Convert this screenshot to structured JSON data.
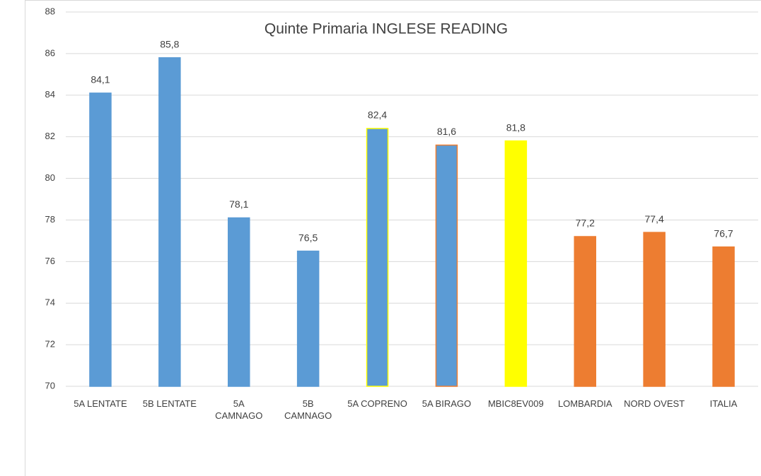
{
  "chart_data": {
    "type": "bar",
    "title": "Quinte Primaria INGLESE READING",
    "categories": [
      "5A LENTATE",
      "5B LENTATE",
      "5A\nCAMNAGO",
      "5B\nCAMNAGO",
      "5A COPRENO",
      "5A BIRAGO",
      "MBIC8EV009",
      "LOMBARDIA",
      "NORD OVEST",
      "ITALIA"
    ],
    "values": [
      84.1,
      85.8,
      78.1,
      76.5,
      82.4,
      81.6,
      81.8,
      77.2,
      77.4,
      76.7
    ],
    "value_labels": [
      "84,1",
      "85,8",
      "78,1",
      "76,5",
      "82,4",
      "81,6",
      "81,8",
      "77,2",
      "77,4",
      "76,7"
    ],
    "colors": [
      "#5b9bd5",
      "#5b9bd5",
      "#5b9bd5",
      "#5b9bd5",
      "#5b9bd5",
      "#5b9bd5",
      "#ffff00",
      "#ed7d31",
      "#ed7d31",
      "#ed7d31"
    ],
    "edge_colors": [
      "#5b9bd5",
      "#5b9bd5",
      "#5b9bd5",
      "#5b9bd5",
      "#ffff00",
      "#ed7d31",
      "#ffff00",
      "#ed7d31",
      "#ed7d31",
      "#ed7d31"
    ],
    "ylim": [
      70,
      88
    ],
    "yticks": [
      70,
      72,
      74,
      76,
      78,
      80,
      82,
      84,
      86,
      88
    ],
    "grid": true
  }
}
